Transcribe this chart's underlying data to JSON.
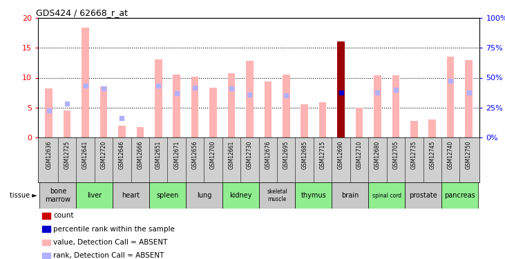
{
  "title": "GDS424 / 62668_r_at",
  "samples": [
    "GSM12636",
    "GSM12725",
    "GSM12641",
    "GSM12720",
    "GSM12646",
    "GSM12666",
    "GSM12651",
    "GSM12671",
    "GSM12656",
    "GSM12700",
    "GSM12661",
    "GSM12730",
    "GSM12676",
    "GSM12695",
    "GSM12685",
    "GSM12715",
    "GSM12690",
    "GSM12710",
    "GSM12680",
    "GSM12705",
    "GSM12735",
    "GSM12745",
    "GSM12740",
    "GSM12750"
  ],
  "tissue_groups": [
    {
      "name": "bone\nmarrow",
      "start": 0,
      "end": 1,
      "color": "#c8c8c8"
    },
    {
      "name": "liver",
      "start": 2,
      "end": 3,
      "color": "#90ee90"
    },
    {
      "name": "heart",
      "start": 4,
      "end": 5,
      "color": "#c8c8c8"
    },
    {
      "name": "spleen",
      "start": 6,
      "end": 7,
      "color": "#90ee90"
    },
    {
      "name": "lung",
      "start": 8,
      "end": 9,
      "color": "#c8c8c8"
    },
    {
      "name": "kidney",
      "start": 10,
      "end": 11,
      "color": "#90ee90"
    },
    {
      "name": "skeletal\nmuscle",
      "start": 12,
      "end": 13,
      "color": "#c8c8c8"
    },
    {
      "name": "thymus",
      "start": 14,
      "end": 15,
      "color": "#90ee90"
    },
    {
      "name": "brain",
      "start": 16,
      "end": 17,
      "color": "#c8c8c8"
    },
    {
      "name": "spinal cord",
      "start": 18,
      "end": 19,
      "color": "#90ee90"
    },
    {
      "name": "prostate",
      "start": 20,
      "end": 21,
      "color": "#c8c8c8"
    },
    {
      "name": "pancreas",
      "start": 22,
      "end": 23,
      "color": "#90ee90"
    }
  ],
  "value_absent": [
    8.2,
    4.5,
    18.4,
    8.5,
    1.9,
    1.7,
    13.1,
    10.5,
    10.2,
    8.3,
    10.8,
    12.8,
    9.4,
    10.5,
    5.5,
    5.9,
    16.1,
    5.0,
    10.4,
    10.4,
    2.8,
    3.0,
    13.5,
    13.0
  ],
  "rank_absent": [
    4.5,
    5.6,
    8.7,
    8.2,
    3.2,
    null,
    8.7,
    7.4,
    8.3,
    null,
    8.2,
    7.2,
    null,
    7.0,
    null,
    null,
    7.5,
    null,
    7.5,
    8.0,
    null,
    null,
    9.5,
    7.5
  ],
  "dark_red_idx": 16,
  "ylim_left": [
    0,
    20
  ],
  "ylim_right": [
    0,
    100
  ],
  "yticks_left": [
    0,
    5,
    10,
    15,
    20
  ],
  "yticks_right": [
    0,
    25,
    50,
    75,
    100
  ],
  "color_value_absent": "#ffb3b3",
  "color_rank_absent": "#b0b0ff",
  "color_count": "#cc0000",
  "color_dark_bar": "#990000",
  "color_percentile": "#0000cc",
  "xtick_bg": "#d0d0d0",
  "legend_items": [
    {
      "color": "#cc0000",
      "label": "count"
    },
    {
      "color": "#0000cc",
      "label": "percentile rank within the sample"
    },
    {
      "color": "#ffb3b3",
      "label": "value, Detection Call = ABSENT"
    },
    {
      "color": "#b0b0ff",
      "label": "rank, Detection Call = ABSENT"
    }
  ]
}
